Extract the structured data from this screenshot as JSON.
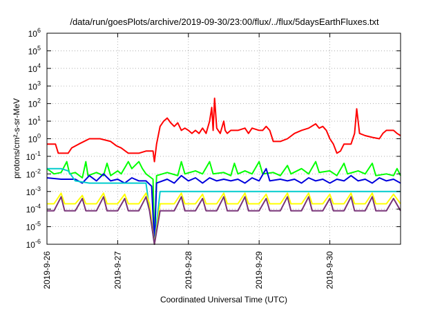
{
  "chart_data": {
    "type": "line",
    "title": "/data/run/goesPlots/archive/2019-09-30/23:00/flux/../flux/5daysEarthFluxes.txt",
    "xlabel": "Coordinated Universal Time (UTC)",
    "ylabel": "protons/cm²-s-sr-MeV",
    "x_ticks": [
      "2019-9-26",
      "2019-9-27",
      "2019-9-28",
      "2019-9-29",
      "2019-9-30"
    ],
    "xlim": [
      0,
      5
    ],
    "y_scale": "log",
    "ylim": [
      1e-06,
      1000000.0
    ],
    "y_ticks": [
      {
        "base": "10",
        "exp": "-6"
      },
      {
        "base": "10",
        "exp": "-5"
      },
      {
        "base": "10",
        "exp": "-4"
      },
      {
        "base": "10",
        "exp": "-3"
      },
      {
        "base": "10",
        "exp": "-2"
      },
      {
        "base": "10",
        "exp": "-1"
      },
      {
        "base": "10",
        "exp": "0"
      },
      {
        "base": "10",
        "exp": "1"
      },
      {
        "base": "10",
        "exp": "2"
      },
      {
        "base": "10",
        "exp": "3"
      },
      {
        "base": "10",
        "exp": "4"
      },
      {
        "base": "10",
        "exp": "5"
      },
      {
        "base": "10",
        "exp": "6"
      }
    ],
    "grid": true,
    "series": [
      {
        "color": "#ff0000",
        "points": [
          [
            0.0,
            0.5
          ],
          [
            0.12,
            0.5
          ],
          [
            0.16,
            0.15
          ],
          [
            0.3,
            0.15
          ],
          [
            0.35,
            0.3
          ],
          [
            0.45,
            0.5
          ],
          [
            0.6,
            1.0
          ],
          [
            0.75,
            1.0
          ],
          [
            0.9,
            0.7
          ],
          [
            0.98,
            0.4
          ],
          [
            1.05,
            0.3
          ],
          [
            1.15,
            0.15
          ],
          [
            1.3,
            0.15
          ],
          [
            1.4,
            0.2
          ],
          [
            1.5,
            0.2
          ],
          [
            1.52,
            0.05
          ],
          [
            1.55,
            0.5
          ],
          [
            1.6,
            5
          ],
          [
            1.65,
            10
          ],
          [
            1.7,
            15
          ],
          [
            1.75,
            8
          ],
          [
            1.8,
            5
          ],
          [
            1.85,
            8
          ],
          [
            1.9,
            3
          ],
          [
            1.95,
            4
          ],
          [
            2.0,
            3
          ],
          [
            2.05,
            2
          ],
          [
            2.1,
            3
          ],
          [
            2.15,
            2
          ],
          [
            2.2,
            4
          ],
          [
            2.25,
            2
          ],
          [
            2.3,
            10
          ],
          [
            2.33,
            60
          ],
          [
            2.35,
            3
          ],
          [
            2.37,
            200
          ],
          [
            2.4,
            4
          ],
          [
            2.45,
            2
          ],
          [
            2.5,
            10
          ],
          [
            2.52,
            3
          ],
          [
            2.55,
            2
          ],
          [
            2.6,
            3
          ],
          [
            2.7,
            3
          ],
          [
            2.8,
            4
          ],
          [
            2.85,
            2
          ],
          [
            2.9,
            4
          ],
          [
            3.0,
            3
          ],
          [
            3.05,
            3
          ],
          [
            3.1,
            5
          ],
          [
            3.15,
            3
          ],
          [
            3.2,
            0.7
          ],
          [
            3.3,
            0.7
          ],
          [
            3.4,
            1
          ],
          [
            3.5,
            2
          ],
          [
            3.6,
            3
          ],
          [
            3.7,
            4
          ],
          [
            3.8,
            7
          ],
          [
            3.85,
            4
          ],
          [
            3.9,
            5
          ],
          [
            3.95,
            3
          ],
          [
            4.0,
            1
          ],
          [
            4.05,
            0.5
          ],
          [
            4.1,
            0.15
          ],
          [
            4.15,
            0.2
          ],
          [
            4.2,
            0.5
          ],
          [
            4.3,
            0.5
          ],
          [
            4.35,
            2
          ],
          [
            4.38,
            50
          ],
          [
            4.42,
            2
          ],
          [
            4.5,
            1.5
          ],
          [
            4.6,
            1.2
          ],
          [
            4.7,
            1
          ],
          [
            4.75,
            2
          ],
          [
            4.8,
            3
          ],
          [
            4.9,
            3
          ],
          [
            4.95,
            2
          ],
          [
            5.0,
            1.5
          ]
        ]
      },
      {
        "color": "#00ff00",
        "points": [
          [
            0.0,
            0.02
          ],
          [
            0.1,
            0.01
          ],
          [
            0.2,
            0.012
          ],
          [
            0.28,
            0.05
          ],
          [
            0.32,
            0.01
          ],
          [
            0.4,
            0.012
          ],
          [
            0.5,
            0.006
          ],
          [
            0.55,
            0.05
          ],
          [
            0.58,
            0.008
          ],
          [
            0.7,
            0.012
          ],
          [
            0.8,
            0.008
          ],
          [
            0.85,
            0.04
          ],
          [
            0.9,
            0.008
          ],
          [
            1.0,
            0.015
          ],
          [
            1.05,
            0.01
          ],
          [
            1.15,
            0.05
          ],
          [
            1.2,
            0.02
          ],
          [
            1.3,
            0.05
          ],
          [
            1.35,
            0.02
          ],
          [
            1.4,
            0.01
          ],
          [
            1.5,
            0.005
          ],
          [
            1.52,
            1e-06
          ],
          [
            1.55,
            0.008
          ],
          [
            1.7,
            0.012
          ],
          [
            1.85,
            0.008
          ],
          [
            1.9,
            0.05
          ],
          [
            1.95,
            0.01
          ],
          [
            2.1,
            0.015
          ],
          [
            2.2,
            0.01
          ],
          [
            2.3,
            0.05
          ],
          [
            2.35,
            0.01
          ],
          [
            2.5,
            0.012
          ],
          [
            2.6,
            0.008
          ],
          [
            2.65,
            0.04
          ],
          [
            2.7,
            0.01
          ],
          [
            2.8,
            0.015
          ],
          [
            2.9,
            0.01
          ],
          [
            3.0,
            0.05
          ],
          [
            3.05,
            0.01
          ],
          [
            3.2,
            0.012
          ],
          [
            3.3,
            0.008
          ],
          [
            3.4,
            0.03
          ],
          [
            3.45,
            0.01
          ],
          [
            3.6,
            0.02
          ],
          [
            3.7,
            0.01
          ],
          [
            3.8,
            0.05
          ],
          [
            3.85,
            0.012
          ],
          [
            4.0,
            0.015
          ],
          [
            4.1,
            0.008
          ],
          [
            4.2,
            0.04
          ],
          [
            4.25,
            0.01
          ],
          [
            4.4,
            0.015
          ],
          [
            4.5,
            0.01
          ],
          [
            4.6,
            0.04
          ],
          [
            4.65,
            0.008
          ],
          [
            4.8,
            0.01
          ],
          [
            4.9,
            0.008
          ],
          [
            4.95,
            0.02
          ],
          [
            5.0,
            0.008
          ]
        ]
      },
      {
        "color": "#0000dd",
        "points": [
          [
            0.0,
            0.006
          ],
          [
            0.2,
            0.005
          ],
          [
            0.4,
            0.005
          ],
          [
            0.5,
            0.003
          ],
          [
            0.6,
            0.008
          ],
          [
            0.7,
            0.004
          ],
          [
            0.8,
            0.01
          ],
          [
            0.9,
            0.004
          ],
          [
            1.0,
            0.005
          ],
          [
            1.1,
            0.003
          ],
          [
            1.2,
            0.006
          ],
          [
            1.3,
            0.004
          ],
          [
            1.4,
            0.004
          ],
          [
            1.48,
            0.002
          ],
          [
            1.52,
            1e-06
          ],
          [
            1.55,
            0.003
          ],
          [
            1.7,
            0.005
          ],
          [
            1.8,
            0.003
          ],
          [
            1.9,
            0.008
          ],
          [
            2.0,
            0.004
          ],
          [
            2.1,
            0.006
          ],
          [
            2.2,
            0.003
          ],
          [
            2.3,
            0.006
          ],
          [
            2.4,
            0.004
          ],
          [
            2.5,
            0.005
          ],
          [
            2.6,
            0.004
          ],
          [
            2.7,
            0.005
          ],
          [
            2.8,
            0.003
          ],
          [
            2.9,
            0.006
          ],
          [
            3.0,
            0.004
          ],
          [
            3.1,
            0.02
          ],
          [
            3.15,
            0.004
          ],
          [
            3.3,
            0.005
          ],
          [
            3.4,
            0.004
          ],
          [
            3.5,
            0.005
          ],
          [
            3.6,
            0.003
          ],
          [
            3.7,
            0.006
          ],
          [
            3.8,
            0.004
          ],
          [
            3.9,
            0.005
          ],
          [
            4.0,
            0.003
          ],
          [
            4.1,
            0.005
          ],
          [
            4.2,
            0.004
          ],
          [
            4.3,
            0.008
          ],
          [
            4.4,
            0.004
          ],
          [
            4.5,
            0.005
          ],
          [
            4.6,
            0.003
          ],
          [
            4.7,
            0.006
          ],
          [
            4.8,
            0.004
          ],
          [
            4.9,
            0.005
          ],
          [
            5.0,
            0.003
          ]
        ]
      },
      {
        "color": "#00cccc",
        "points": [
          [
            0.0,
            0.02
          ],
          [
            0.2,
            0.02
          ],
          [
            0.3,
            0.015
          ],
          [
            0.4,
            0.004
          ],
          [
            0.6,
            0.003
          ],
          [
            0.8,
            0.003
          ],
          [
            1.0,
            0.003
          ],
          [
            1.2,
            0.003
          ],
          [
            1.4,
            0.003
          ],
          [
            1.52,
            1e-06
          ],
          [
            1.6,
            0.001
          ],
          [
            2.0,
            0.001
          ],
          [
            2.5,
            0.001
          ],
          [
            3.0,
            0.001
          ],
          [
            3.5,
            0.001
          ],
          [
            4.0,
            0.001
          ],
          [
            4.5,
            0.001
          ],
          [
            5.0,
            0.001
          ]
        ]
      },
      {
        "color": "#ffff00",
        "points": [
          [
            0.0,
            0.0002
          ],
          [
            0.1,
            0.0002
          ],
          [
            0.2,
            0.0008
          ],
          [
            0.25,
            0.0002
          ],
          [
            0.4,
            0.0002
          ],
          [
            0.5,
            0.0006
          ],
          [
            0.55,
            0.0002
          ],
          [
            0.7,
            0.0002
          ],
          [
            0.8,
            0.0008
          ],
          [
            0.85,
            0.0002
          ],
          [
            1.0,
            0.0002
          ],
          [
            1.1,
            0.0007
          ],
          [
            1.15,
            0.0002
          ],
          [
            1.3,
            0.0002
          ],
          [
            1.4,
            0.0008
          ],
          [
            1.45,
            0.0002
          ],
          [
            1.52,
            1e-06
          ],
          [
            1.6,
            0.0002
          ],
          [
            1.8,
            0.0002
          ],
          [
            1.9,
            0.0008
          ],
          [
            1.95,
            0.0002
          ],
          [
            2.1,
            0.0002
          ],
          [
            2.2,
            0.0007
          ],
          [
            2.25,
            0.0002
          ],
          [
            2.4,
            0.0002
          ],
          [
            2.5,
            0.0008
          ],
          [
            2.55,
            0.0002
          ],
          [
            2.7,
            0.0002
          ],
          [
            2.8,
            0.0008
          ],
          [
            2.85,
            0.0002
          ],
          [
            3.0,
            0.0002
          ],
          [
            3.1,
            0.0007
          ],
          [
            3.15,
            0.0002
          ],
          [
            3.3,
            0.0002
          ],
          [
            3.4,
            0.0008
          ],
          [
            3.45,
            0.0002
          ],
          [
            3.6,
            0.0002
          ],
          [
            3.7,
            0.0008
          ],
          [
            3.75,
            0.0002
          ],
          [
            3.9,
            0.0002
          ],
          [
            4.0,
            0.0007
          ],
          [
            4.05,
            0.0002
          ],
          [
            4.2,
            0.0002
          ],
          [
            4.3,
            0.0008
          ],
          [
            4.35,
            0.0002
          ],
          [
            4.5,
            0.0002
          ],
          [
            4.6,
            0.0008
          ],
          [
            4.65,
            0.0002
          ],
          [
            4.8,
            0.0002
          ],
          [
            4.9,
            0.0007
          ],
          [
            5.0,
            0.0002
          ]
        ]
      },
      {
        "color": "#773377",
        "points": [
          [
            0.0,
            8e-05
          ],
          [
            0.1,
            8e-05
          ],
          [
            0.2,
            0.0005
          ],
          [
            0.25,
            8e-05
          ],
          [
            0.4,
            8e-05
          ],
          [
            0.5,
            0.0004
          ],
          [
            0.55,
            8e-05
          ],
          [
            0.7,
            8e-05
          ],
          [
            0.8,
            0.0005
          ],
          [
            0.85,
            8e-05
          ],
          [
            1.0,
            8e-05
          ],
          [
            1.1,
            0.0004
          ],
          [
            1.15,
            8e-05
          ],
          [
            1.3,
            8e-05
          ],
          [
            1.4,
            0.0005
          ],
          [
            1.45,
            8e-05
          ],
          [
            1.52,
            1e-06
          ],
          [
            1.6,
            8e-05
          ],
          [
            1.8,
            8e-05
          ],
          [
            1.9,
            0.0005
          ],
          [
            1.95,
            8e-05
          ],
          [
            2.1,
            8e-05
          ],
          [
            2.2,
            0.0004
          ],
          [
            2.25,
            8e-05
          ],
          [
            2.4,
            8e-05
          ],
          [
            2.5,
            0.0005
          ],
          [
            2.55,
            8e-05
          ],
          [
            2.7,
            8e-05
          ],
          [
            2.8,
            0.0005
          ],
          [
            2.85,
            8e-05
          ],
          [
            3.0,
            8e-05
          ],
          [
            3.1,
            0.0004
          ],
          [
            3.15,
            8e-05
          ],
          [
            3.3,
            8e-05
          ],
          [
            3.4,
            0.0005
          ],
          [
            3.45,
            8e-05
          ],
          [
            3.6,
            8e-05
          ],
          [
            3.7,
            0.0005
          ],
          [
            3.75,
            8e-05
          ],
          [
            3.9,
            8e-05
          ],
          [
            4.0,
            0.0004
          ],
          [
            4.05,
            8e-05
          ],
          [
            4.2,
            8e-05
          ],
          [
            4.3,
            0.0005
          ],
          [
            4.35,
            8e-05
          ],
          [
            4.5,
            8e-05
          ],
          [
            4.6,
            0.0005
          ],
          [
            4.65,
            8e-05
          ],
          [
            4.8,
            8e-05
          ],
          [
            4.9,
            0.0004
          ],
          [
            5.0,
            8e-05
          ]
        ]
      }
    ]
  }
}
